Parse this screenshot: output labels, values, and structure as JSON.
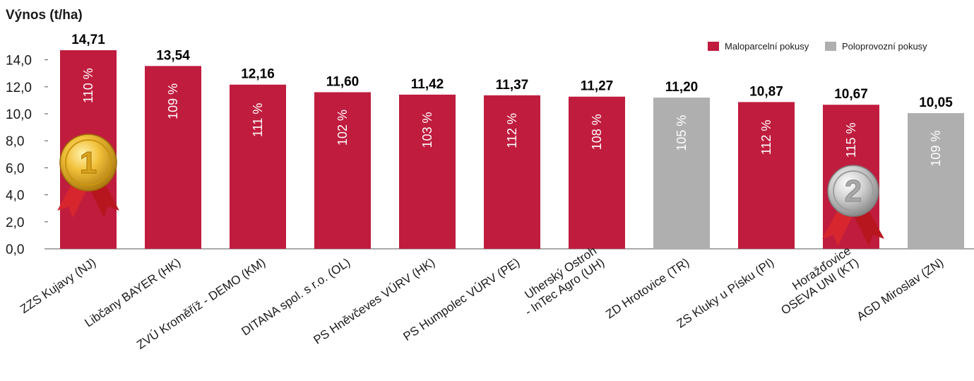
{
  "chart_data": {
    "type": "bar",
    "ylabel": "Výnos (t/ha)",
    "ylim": [
      0,
      15
    ],
    "yticks": [
      "0,0",
      "2,0",
      "4,0",
      "6,0",
      "8,0",
      "10,0",
      "12,0",
      "14,0"
    ],
    "ytick_values": [
      0,
      2,
      4,
      6,
      8,
      10,
      12,
      14
    ],
    "legend_position": "top-right",
    "grid": false,
    "colors": {
      "Maloparcelní pokusy": "#c01c3e",
      "Poloprovozní pokusy": "#afafaf"
    },
    "legend": [
      {
        "name": "Maloparcelní pokusy",
        "color": "#c01c3e"
      },
      {
        "name": "Poloprovozní pokusy",
        "color": "#afafaf"
      }
    ],
    "bars": [
      {
        "category": [
          "ZZS Kujavy (NJ)"
        ],
        "value": 14.71,
        "value_label": "14,71",
        "percent": "110 %",
        "group": "Maloparcelní pokusy",
        "medal": "gold",
        "medal_text": "1"
      },
      {
        "category": [
          "Libčany BAYER (HK)"
        ],
        "value": 13.54,
        "value_label": "13,54",
        "percent": "109 %",
        "group": "Maloparcelní pokusy"
      },
      {
        "category": [
          "ZVÚ Kroměříž - DEMO (KM)"
        ],
        "value": 12.16,
        "value_label": "12,16",
        "percent": "111 %",
        "group": "Maloparcelní pokusy"
      },
      {
        "category": [
          "DITANA spol. s r.o. (OL)"
        ],
        "value": 11.6,
        "value_label": "11,60",
        "percent": "102 %",
        "group": "Maloparcelní pokusy"
      },
      {
        "category": [
          "PS Hněvčeves VÚRV (HK)"
        ],
        "value": 11.42,
        "value_label": "11,42",
        "percent": "103 %",
        "group": "Maloparcelní pokusy"
      },
      {
        "category": [
          "PS Humpolec VÚRV (PE)"
        ],
        "value": 11.37,
        "value_label": "11,37",
        "percent": "112 %",
        "group": "Maloparcelní pokusy"
      },
      {
        "category": [
          "Uherský Ostroh",
          "- InTec Agro (UH)"
        ],
        "value": 11.27,
        "value_label": "11,27",
        "percent": "108 %",
        "group": "Maloparcelní pokusy"
      },
      {
        "category": [
          "ZD Hrotovice (TR)"
        ],
        "value": 11.2,
        "value_label": "11,20",
        "percent": "105 %",
        "group": "Poloprovozní pokusy"
      },
      {
        "category": [
          "ZS Kluky u Písku (PI)"
        ],
        "value": 10.87,
        "value_label": "10,87",
        "percent": "112 %",
        "group": "Maloparcelní pokusy"
      },
      {
        "category": [
          "Horažďovice",
          "OSEVA UNI (KT)"
        ],
        "value": 10.67,
        "value_label": "10,67",
        "percent": "115 %",
        "group": "Maloparcelní pokusy",
        "medal": "silver",
        "medal_text": "2"
      },
      {
        "category": [
          "AGD Miroslav (ZN)"
        ],
        "value": 10.05,
        "value_label": "10,05",
        "percent": "109 %",
        "group": "Poloprovozní pokusy"
      }
    ]
  }
}
